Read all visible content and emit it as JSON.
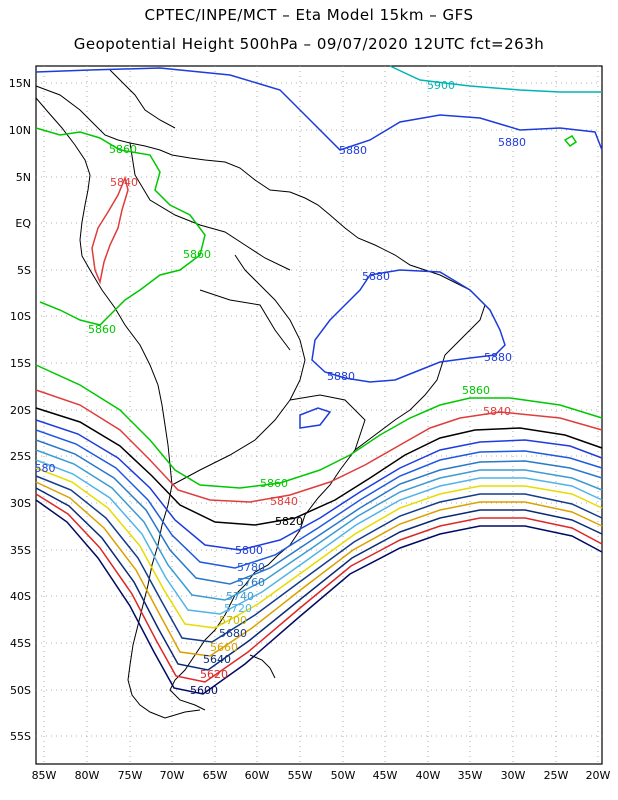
{
  "header": {
    "line1": "CPTEC/INPE/MCT –  Eta Model 15km – GFS",
    "line2": "Geopotential Height 500hPa – 09/07/2020 12UTC fct=263h"
  },
  "axes": {
    "lat_labels": [
      "15N",
      "10N",
      "5N",
      "EQ",
      "5S",
      "10S",
      "15S",
      "20S",
      "25S",
      "30S",
      "35S",
      "40S",
      "45S",
      "50S",
      "55S"
    ],
    "lon_labels": [
      "85W",
      "80W",
      "75W",
      "70W",
      "65W",
      "60W",
      "55W",
      "50W",
      "45W",
      "40W",
      "35W",
      "30W",
      "25W",
      "20W"
    ]
  },
  "colors": {
    "c5900": "#00b4b4",
    "c5880": "#1e3cdc",
    "c5860": "#00c800",
    "c5840": "#e03c3c",
    "c5820": "#000000",
    "c5800": "#1e3cdc",
    "c5780": "#1e5ae0",
    "c5760": "#2a78c8",
    "c5740": "#3c9cd2",
    "c5720": "#50b4e6",
    "c5700": "#e6dc00",
    "c5680": "#143c8c",
    "c5660": "#dca000",
    "c5640": "#0a2a78",
    "c5620": "#dc2828",
    "c5600": "#000a64"
  },
  "contour_labels": [
    {
      "id": "5900",
      "text": "5900"
    },
    {
      "id": "5880a",
      "text": "5880"
    },
    {
      "id": "5880b",
      "text": "5880"
    },
    {
      "id": "5880c",
      "text": "5880"
    },
    {
      "id": "5880d",
      "text": "5880"
    },
    {
      "id": "5880e",
      "text": "5880"
    },
    {
      "id": "5860a",
      "text": "5860"
    },
    {
      "id": "5860b",
      "text": "5860"
    },
    {
      "id": "5860c",
      "text": "5860"
    },
    {
      "id": "5860d",
      "text": "5860"
    },
    {
      "id": "5860e",
      "text": "5860"
    },
    {
      "id": "5840a",
      "text": "5840"
    },
    {
      "id": "5840b",
      "text": "5840"
    },
    {
      "id": "5840c",
      "text": "5840"
    },
    {
      "id": "5820",
      "text": "5820"
    },
    {
      "id": "5800",
      "text": "5800"
    },
    {
      "id": "5780",
      "text": "5780"
    },
    {
      "id": "5760",
      "text": "5760"
    },
    {
      "id": "5740",
      "text": "5740"
    },
    {
      "id": "5720",
      "text": "5720"
    },
    {
      "id": "5700",
      "text": "5700"
    },
    {
      "id": "5680",
      "text": "5680"
    },
    {
      "id": "5660",
      "text": "5660"
    },
    {
      "id": "5640",
      "text": "5640"
    },
    {
      "id": "5620",
      "text": "5620"
    },
    {
      "id": "5600",
      "text": "5600"
    },
    {
      "id": "580edge",
      "text": "580"
    }
  ]
}
